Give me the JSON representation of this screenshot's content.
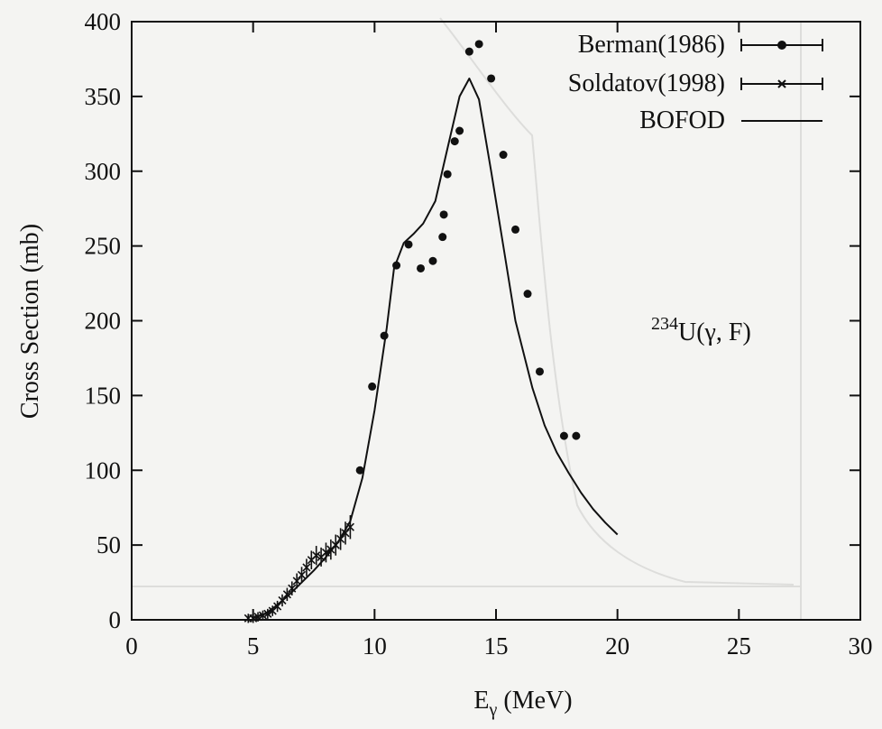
{
  "chart_data": {
    "type": "scatter",
    "xlabel": "E",
    "xlabel_sub": "γ",
    "xlabel_unit": " (MeV)",
    "ylabel": "Cross Section (mb)",
    "xlim": [
      0,
      30
    ],
    "ylim": [
      0,
      400
    ],
    "xticks": [
      0,
      5,
      10,
      15,
      20,
      25,
      30
    ],
    "yticks": [
      0,
      50,
      100,
      150,
      200,
      250,
      300,
      350,
      400
    ],
    "grid": false,
    "legend_position": "top-right",
    "annotation": {
      "sup": "234",
      "text": "U(γ, F)"
    },
    "series": [
      {
        "name": "Berman(1986)",
        "marker": "dot",
        "x": [
          9.4,
          9.9,
          10.4,
          10.9,
          11.4,
          11.9,
          12.4,
          12.8,
          12.85,
          13.0,
          13.3,
          13.5,
          13.9,
          14.3,
          14.8,
          15.3,
          15.8,
          16.3,
          16.8,
          17.8,
          18.3
        ],
        "y": [
          100,
          156,
          190,
          237,
          251,
          235,
          240,
          256,
          271,
          298,
          320,
          327,
          380,
          385,
          362,
          311,
          261,
          218,
          166,
          123,
          123
        ]
      },
      {
        "name": "Soldatov(1998)",
        "marker": "x",
        "x": [
          4.8,
          5.0,
          5.2,
          5.4,
          5.6,
          5.8,
          6.0,
          6.2,
          6.4,
          6.6,
          6.8,
          7.0,
          7.2,
          7.4,
          7.6,
          7.8,
          8.0,
          8.2,
          8.4,
          8.6,
          8.8,
          9.0
        ],
        "y": [
          1,
          1,
          2,
          3,
          4,
          6,
          9,
          13,
          17,
          21,
          26,
          30,
          35,
          40,
          43,
          42,
          45,
          47,
          50,
          54,
          58,
          62
        ]
      },
      {
        "name": "BOFOD",
        "marker": "line",
        "x": [
          5.0,
          5.5,
          6.0,
          6.5,
          7.0,
          7.5,
          8.0,
          8.5,
          9.0,
          9.5,
          10.0,
          10.5,
          10.8,
          11.2,
          11.6,
          12.0,
          12.5,
          13.0,
          13.5,
          13.9,
          14.3,
          14.8,
          15.3,
          15.8,
          16.5,
          17.0,
          17.5,
          18.0,
          18.5,
          19.0,
          19.5,
          20.0
        ],
        "y": [
          1,
          4,
          10,
          17,
          25,
          33,
          42,
          52,
          66,
          95,
          140,
          195,
          235,
          252,
          258,
          265,
          280,
          315,
          350,
          362,
          348,
          300,
          250,
          200,
          155,
          130,
          112,
          98,
          85,
          74,
          65,
          57
        ]
      }
    ]
  }
}
